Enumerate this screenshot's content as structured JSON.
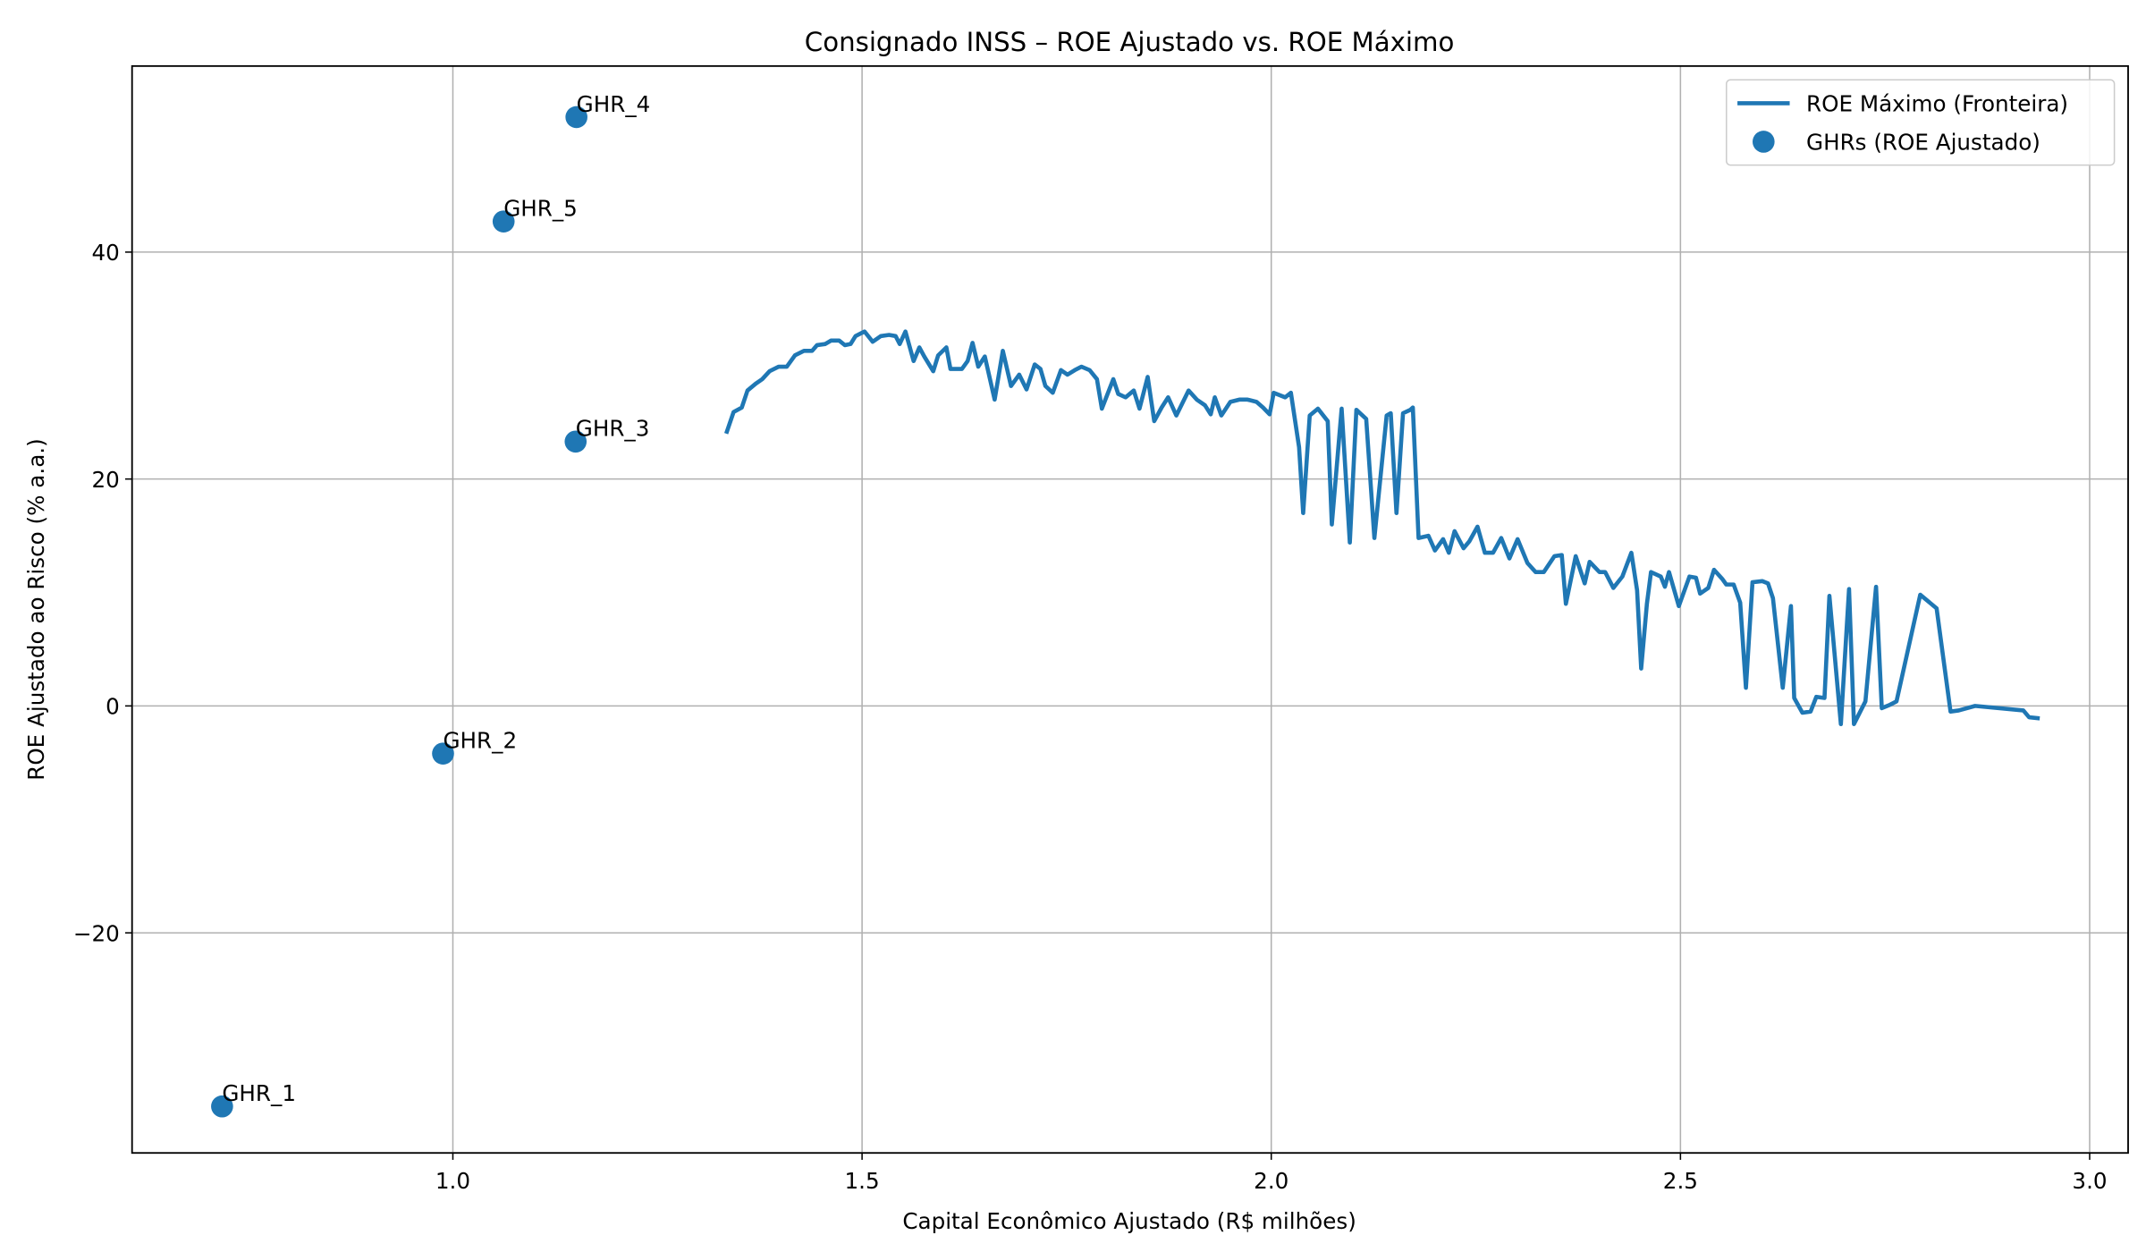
{
  "chart_data": {
    "type": "line",
    "title": "Consignado INSS – ROE Ajustado vs. ROE Máximo",
    "x_label": "Capital Econômico Ajustado (R$ milhões)",
    "y_label": "ROE Ajustado ao Risco (% a.a.)",
    "xlim": [
      0.608,
      3.047
    ],
    "ylim": [
      -39.4,
      56.4
    ],
    "xticks": [
      {
        "value": 1,
        "label": "1.0"
      },
      {
        "value": 1.5,
        "label": "1.5"
      },
      {
        "value": 2,
        "label": "2.0"
      },
      {
        "value": 2.5,
        "label": "2.5"
      },
      {
        "value": 3,
        "label": "3.0"
      }
    ],
    "yticks": [
      {
        "value": -20,
        "label": "−20"
      },
      0,
      20,
      40
    ],
    "grid": true,
    "legend": "upper right",
    "series": [
      {
        "name": "ROE Máximo (Fronteira)",
        "type": "line",
        "color": "#1f77b4",
        "x": [
          1.334,
          1.343,
          1.353,
          1.36,
          1.37,
          1.378,
          1.387,
          1.398,
          1.408,
          1.418,
          1.429,
          1.439,
          1.445,
          1.455,
          1.462,
          1.472,
          1.479,
          1.486,
          1.492,
          1.503,
          1.513,
          1.523,
          1.533,
          1.541,
          1.546,
          1.553,
          1.563,
          1.57,
          1.576,
          1.587,
          1.593,
          1.603,
          1.608,
          1.622,
          1.629,
          1.635,
          1.642,
          1.65,
          1.662,
          1.672,
          1.682,
          1.692,
          1.701,
          1.711,
          1.718,
          1.724,
          1.733,
          1.743,
          1.751,
          1.76,
          1.768,
          1.778,
          1.787,
          1.793,
          1.807,
          1.813,
          1.822,
          1.832,
          1.839,
          1.849,
          1.857,
          1.866,
          1.874,
          1.884,
          1.899,
          1.909,
          1.919,
          1.926,
          1.931,
          1.939,
          1.95,
          1.961,
          1.971,
          1.982,
          1.99,
          1.998,
          2.003,
          2.017,
          2.024,
          2.034,
          2.039,
          2.047,
          2.057,
          2.069,
          2.074,
          2.086,
          2.096,
          2.104,
          2.116,
          2.126,
          2.141,
          2.146,
          2.153,
          2.161,
          2.17,
          2.173,
          2.18,
          2.192,
          2.2,
          2.21,
          2.217,
          2.224,
          2.235,
          2.242,
          2.252,
          2.261,
          2.271,
          2.281,
          2.291,
          2.301,
          2.313,
          2.323,
          2.333,
          2.346,
          2.355,
          2.36,
          2.372,
          2.383,
          2.389,
          2.401,
          2.408,
          2.418,
          2.429,
          2.44,
          2.447,
          2.452,
          2.459,
          2.464,
          2.476,
          2.481,
          2.486,
          2.498,
          2.511,
          2.519,
          2.524,
          2.534,
          2.541,
          2.551,
          2.556,
          2.565,
          2.573,
          2.58,
          2.588,
          2.6,
          2.607,
          2.613,
          2.625,
          2.635,
          2.639,
          2.649,
          2.659,
          2.666,
          2.676,
          2.682,
          2.696,
          2.706,
          2.712,
          2.726,
          2.739,
          2.746,
          2.756,
          2.764,
          2.793,
          2.813,
          2.83,
          2.84,
          2.86,
          2.919,
          2.926,
          2.939
        ],
        "values": [
          24.0,
          25.9,
          26.3,
          27.8,
          28.4,
          28.8,
          29.5,
          29.9,
          29.9,
          30.9,
          31.3,
          31.3,
          31.8,
          31.9,
          32.2,
          32.2,
          31.8,
          31.9,
          32.6,
          33.0,
          32.1,
          32.6,
          32.7,
          32.6,
          31.9,
          33.0,
          30.4,
          31.6,
          30.8,
          29.5,
          30.9,
          31.6,
          29.7,
          29.7,
          30.4,
          32.0,
          29.9,
          30.8,
          27.0,
          31.3,
          28.2,
          29.2,
          27.9,
          30.1,
          29.7,
          28.2,
          27.6,
          29.6,
          29.2,
          29.6,
          29.9,
          29.6,
          28.8,
          26.2,
          28.8,
          27.5,
          27.2,
          27.8,
          26.2,
          29.0,
          25.1,
          26.3,
          27.2,
          25.6,
          27.8,
          27.0,
          26.5,
          25.7,
          27.2,
          25.6,
          26.8,
          27.0,
          27.0,
          26.8,
          26.3,
          25.7,
          27.6,
          27.2,
          27.6,
          22.8,
          17.0,
          25.6,
          26.2,
          25.1,
          16.0,
          26.2,
          14.4,
          26.1,
          25.3,
          14.8,
          25.6,
          25.8,
          17.0,
          25.8,
          26.1,
          26.3,
          14.8,
          15.0,
          13.7,
          14.7,
          13.5,
          15.4,
          13.9,
          14.5,
          15.8,
          13.5,
          13.5,
          14.8,
          13.0,
          14.7,
          12.6,
          11.8,
          11.8,
          13.2,
          13.3,
          9.0,
          13.2,
          10.8,
          12.7,
          11.8,
          11.8,
          10.4,
          11.4,
          13.5,
          10.2,
          3.3,
          9.0,
          11.8,
          11.4,
          10.5,
          11.8,
          8.8,
          11.4,
          11.3,
          9.9,
          10.4,
          12.0,
          11.2,
          10.7,
          10.7,
          9.1,
          1.6,
          10.9,
          11.0,
          10.8,
          9.5,
          1.6,
          8.8,
          0.7,
          -0.6,
          -0.5,
          0.8,
          0.7,
          9.7,
          -1.6,
          10.3,
          -1.6,
          0.4,
          10.5,
          -0.2,
          0.1,
          0.4,
          9.8,
          8.6,
          -0.5,
          -0.4,
          0.0,
          -0.4,
          -1.0,
          -1.1
        ]
      },
      {
        "name": "GHRs (ROE Ajustado)",
        "type": "scatter",
        "color": "#1f77b4",
        "x": [
          0.718,
          0.988,
          1.15,
          1.151,
          1.062
        ],
        "values": [
          -35.3,
          -4.2,
          23.3,
          51.9,
          42.7
        ],
        "labels": [
          "GHR_1",
          "GHR_2",
          "GHR_3",
          "GHR_4",
          "GHR_5"
        ]
      }
    ]
  }
}
